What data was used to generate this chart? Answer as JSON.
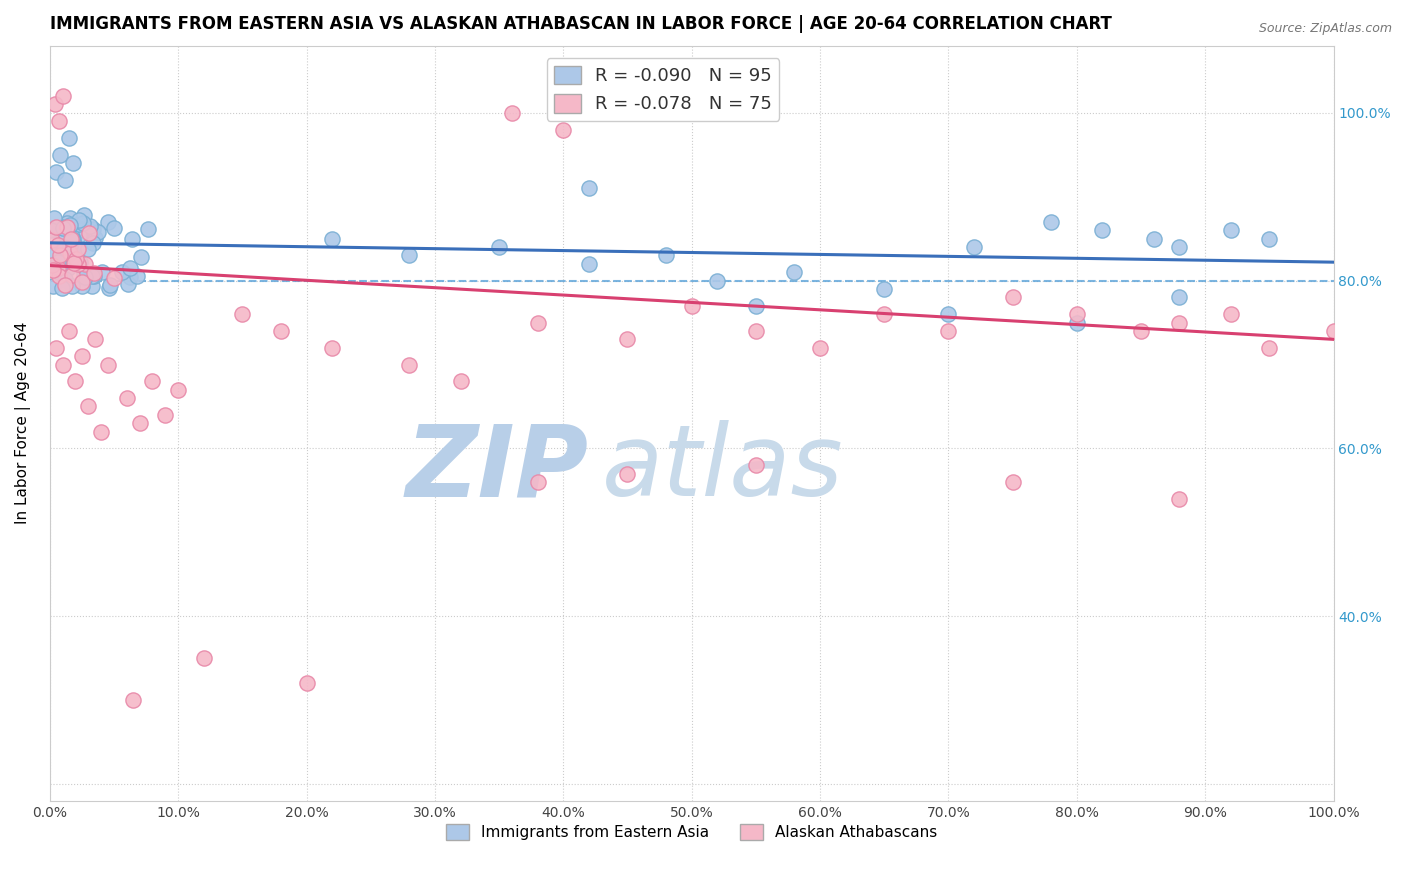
{
  "title": "IMMIGRANTS FROM EASTERN ASIA VS ALASKAN ATHABASCAN IN LABOR FORCE | AGE 20-64 CORRELATION CHART",
  "source": "Source: ZipAtlas.com",
  "ylabel": "In Labor Force | Age 20-64",
  "xlim": [
    0.0,
    1.0
  ],
  "ylim": [
    0.18,
    1.08
  ],
  "blue_R": -0.09,
  "blue_N": 95,
  "pink_R": -0.078,
  "pink_N": 75,
  "blue_color": "#adc8e8",
  "blue_edge": "#7aafd4",
  "pink_color": "#f5b8c8",
  "pink_edge": "#e888a8",
  "blue_line_color": "#3a6fba",
  "pink_line_color": "#d84070",
  "dashed_line_y": 0.8,
  "dashed_line_color": "#5ba3d9",
  "watermark_zip": "ZIP",
  "watermark_atlas": "atlas",
  "watermark_color_zip": "#b8cfe8",
  "watermark_color_atlas": "#c8daea",
  "title_fontsize": 12,
  "axis_label_fontsize": 11,
  "tick_fontsize": 10,
  "legend_fontsize": 13,
  "blue_line_start": 0.845,
  "blue_line_end": 0.822,
  "pink_line_start": 0.818,
  "pink_line_end": 0.73,
  "scatter_s": 120,
  "scatter_lw": 1.0
}
